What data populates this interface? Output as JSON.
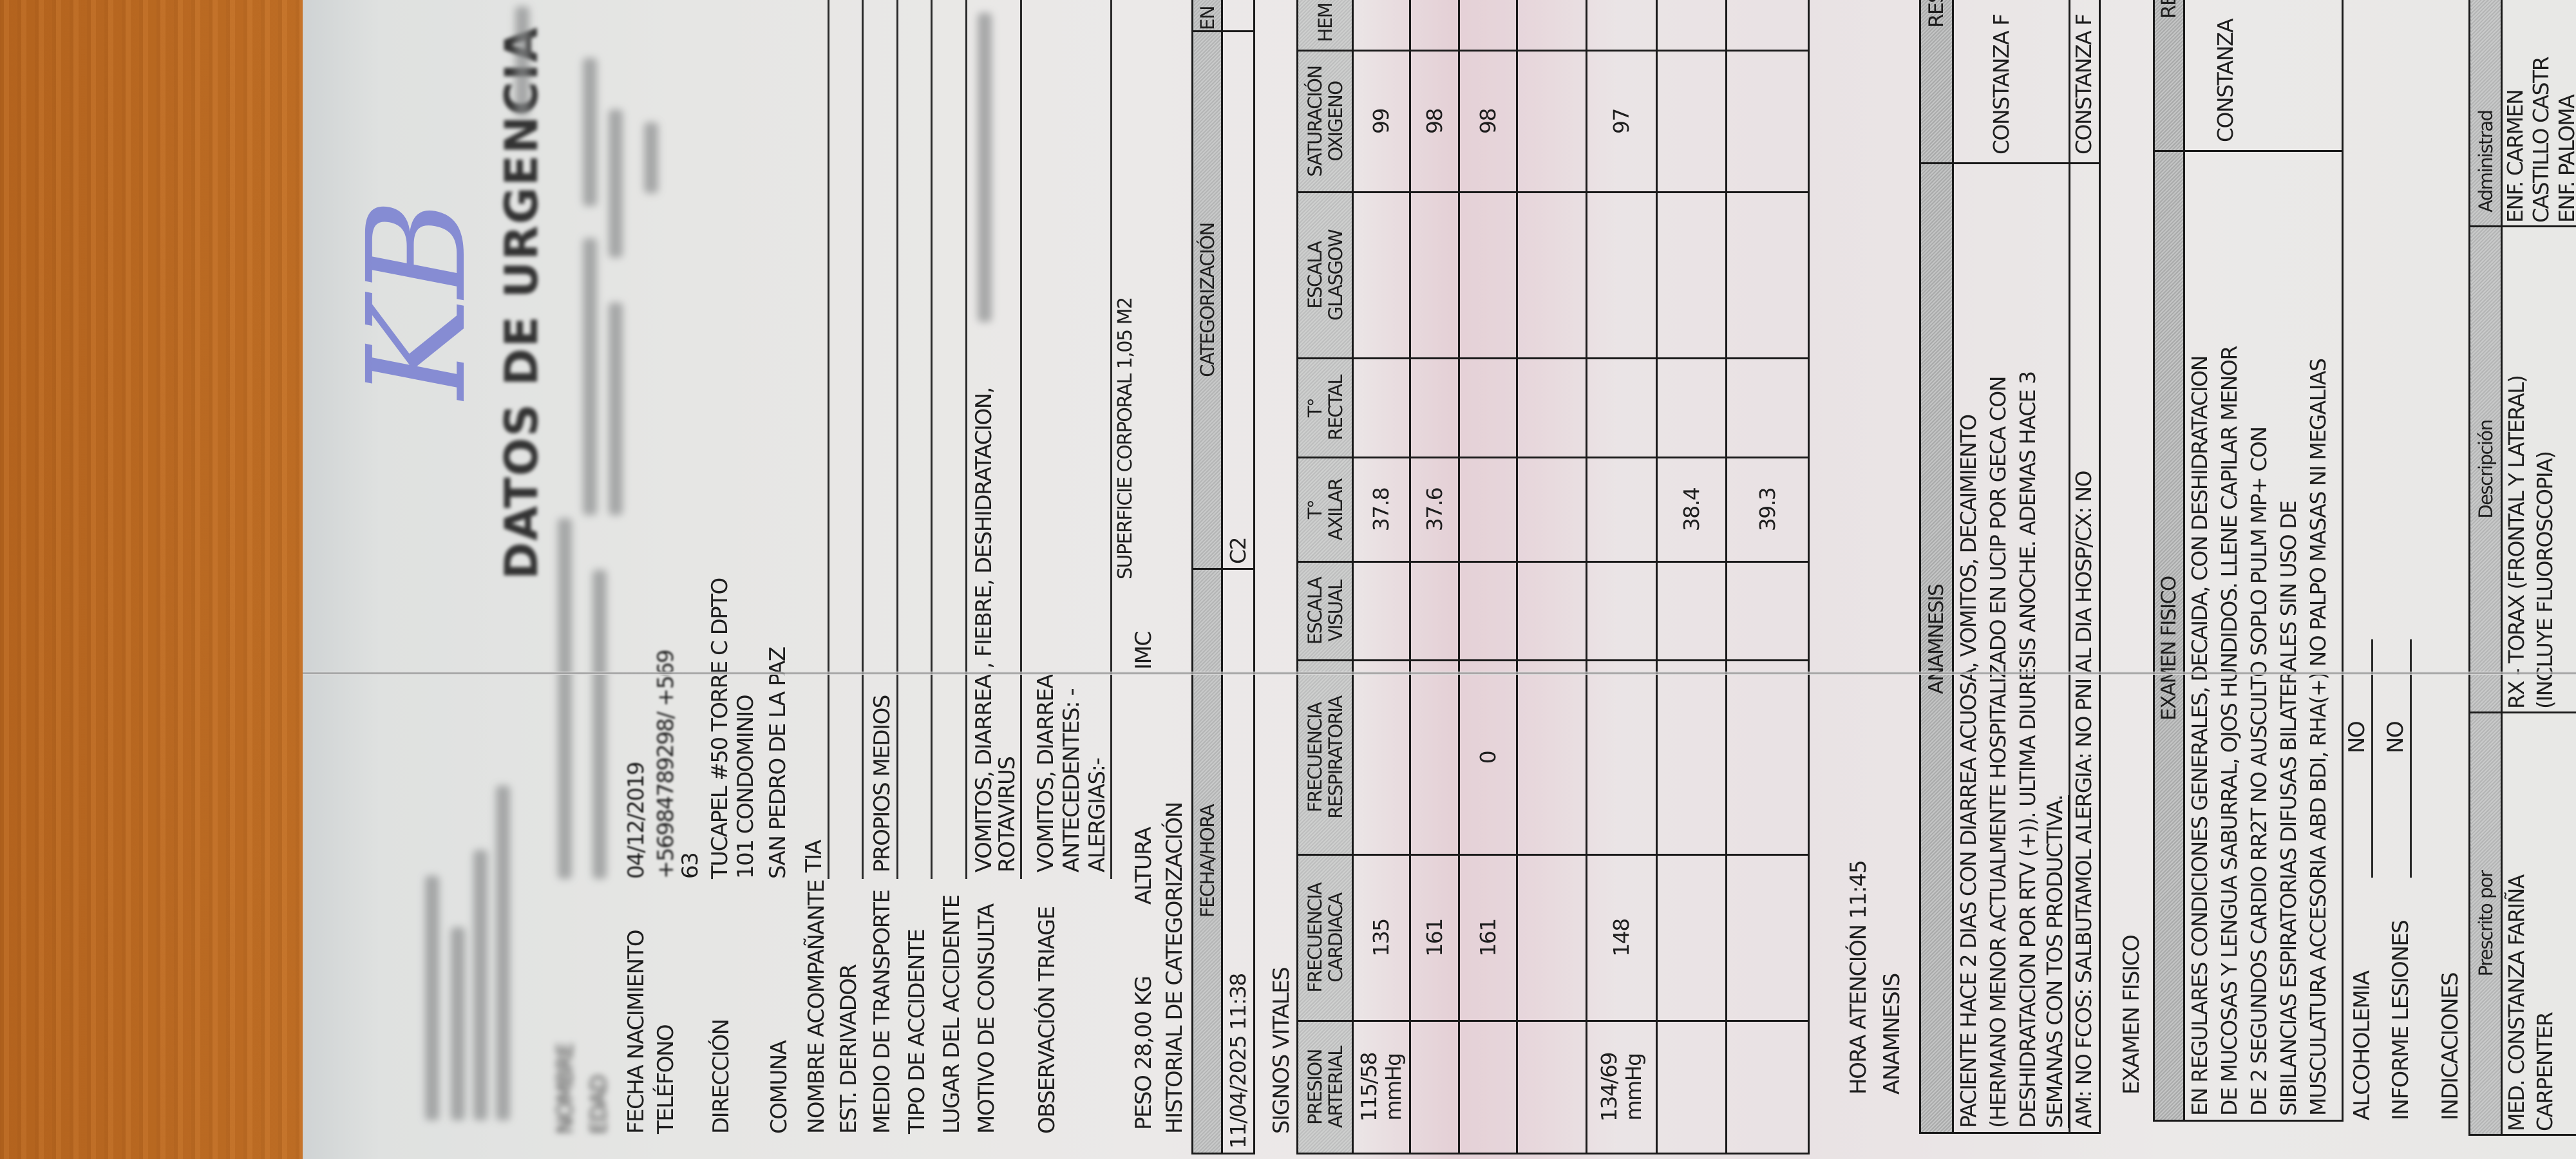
{
  "header": {
    "title": "DATOS DE URGENCIA",
    "handwritten_mark": "KB",
    "handwritten_color": "#6870cf"
  },
  "patient": {
    "fecha_nacimiento": {
      "label": "FECHA NACIMIENTO",
      "value": "04/12/2019"
    },
    "nombre_label": "NOMBRE",
    "edad_label": "EDAD",
    "telefono": {
      "label": "TELÉFONO",
      "value_line1": "+56984789298/ +569",
      "value_line2": "63"
    },
    "direccion": {
      "label": "DIRECCIÓN",
      "value_line1": "TUCAPEL #50 TORRE C DPTO",
      "value_line2": "101 CONDOMINIO"
    },
    "comuna": {
      "label": "COMUNA",
      "value": "SAN PEDRO DE LA PAZ"
    },
    "acompanante": {
      "label": "NOMBRE ACOMPAÑANTE",
      "value": "TIA"
    },
    "derivador": {
      "label": "EST. DERIVADOR",
      "value": ""
    },
    "transporte": {
      "label": "MEDIO DE TRANSPORTE",
      "value": "PROPIOS MEDIOS"
    },
    "tipo_accidente": {
      "label": "TIPO DE ACCIDENTE",
      "value": ""
    },
    "lugar_accidente": {
      "label": "LUGAR DEL ACCIDENTE",
      "value": ""
    },
    "motivo": {
      "label": "MOTIVO DE CONSULTA",
      "value_line1": "VOMITOS, DIARREA , FIEBRE, DESHIDRATACION,",
      "value_line2": "ROTAVIRUS"
    },
    "observacion": {
      "label": "OBSERVACIÓN TRIAGE",
      "value_line1": "VOMITOS, DIARREA",
      "value_line2": "ANTECEDENTES: -",
      "value_line3": "ALERGIAS:-"
    },
    "peso": "PESO 28,00 KG",
    "altura": "ALTURA",
    "imc": "IMC",
    "superficie": "SUPERFICIE CORPORAL 1,05 M2"
  },
  "categorizacion": {
    "section_label": "HISTORIAL DE CATEGORIZACIÓN",
    "col_fecha": "FECHA/HORA",
    "col_categoria": "CATEGORIZACIÓN",
    "col_extra": "EN",
    "fecha": "11/04/2025 11:38",
    "categoria": "C2"
  },
  "vitals": {
    "section_label": "SIGNOS VITALES",
    "headers": [
      [
        "PRESION",
        "ARTERIAL"
      ],
      [
        "FRECUENCIA",
        "CARDIACA"
      ],
      [
        "FRECUENCIA",
        "RESPIRATORIA"
      ],
      [
        "ESCALA",
        "VISUAL"
      ],
      [
        "T°",
        "AXILAR"
      ],
      [
        "T°",
        "RECTAL"
      ],
      [
        "ESCALA",
        "GLASGOW"
      ],
      [
        "SATURACIÓN",
        "OXIGENO"
      ],
      [
        "HEM",
        ""
      ]
    ],
    "rows": [
      [
        "115/58\nmmHg",
        "135",
        "",
        "",
        "37.8",
        "",
        "",
        "99",
        ""
      ],
      [
        "",
        "161",
        "",
        "",
        "37.6",
        "",
        "",
        "98",
        ""
      ],
      [
        "",
        "161",
        "0",
        "",
        "",
        "",
        "",
        "98",
        ""
      ],
      [
        "",
        "",
        "",
        "",
        "",
        "",
        "",
        "",
        ""
      ],
      [
        "134/69\nmmHg",
        "148",
        "",
        "",
        "",
        "",
        "",
        "97",
        ""
      ],
      [
        "",
        "",
        "",
        "",
        "38.4",
        "",
        "",
        "",
        ""
      ],
      [
        "",
        "",
        "",
        "",
        "39.3",
        "",
        "",
        "",
        ""
      ]
    ]
  },
  "anamnesis": {
    "hora_atencion": "HORA ATENCIÓN 11:45",
    "section_label": "ANAMNESIS",
    "header": "ANAMNESIS",
    "resp_header": "RES",
    "lines": [
      "PACIENTE HACE 2 DIAS CON DIARREA ACUOSA, VOMITOS, DECAIMIENTO",
      "(HERMANO MENOR ACTUALMENTE HOSPITALIZADO EN UCIP POR GECA CON",
      "DESHIDRATACION POR RTV (+)). ULTIMA DIURESIS ANOCHE. ADEMAS HACE 3",
      "SEMANAS CON TOS PRODUCTIVA."
    ],
    "responsable": "CONSTANZA F",
    "am_line": "AM: NO FCOS: SALBUTAMOL ALERGIA: NO PNI AL DIA HOSP/CX: NO",
    "am_responsable": "CONSTANZA F"
  },
  "examen": {
    "section_label": "EXAMEN FISICO",
    "header": "EXAMEN FISICO",
    "resp_header": "RE",
    "lines": [
      "EN REGULARES CONDICIONES GENERALES, DECAIDA, CON DESHIDRATACION",
      "DE MUCOSAS Y LENGUA SABURRAL, OJOS HUNDIDOS. LLENE CAPILAR MENOR",
      "DE 2 SEGUNDOS CARDIO RR2T NO AUSCULTO SOPLO PULM MP+ CON",
      "SIBILANCIAS ESPIRATORIAS DIFUSAS BILATERALES SIN USO DE",
      "MUSCULATURA ACCESORIA ABD BDI, RHA(+) NO PALPO MASAS NI MEGALIAS"
    ],
    "responsable": "CONSTANZA"
  },
  "alcoholemia": {
    "label": "ALCOHOLEMIA",
    "value": "NO"
  },
  "informe_lesiones": {
    "label": "INFORME LESIONES",
    "value": "NO"
  },
  "indicaciones": {
    "section_label": "INDICACIONES",
    "col_prescrito": "Prescrito por",
    "col_descripcion": "Descripción",
    "col_administrado": "Administrad",
    "row": {
      "prescrito_line1": "MED.   CONSTANZA   FARIÑA",
      "prescrito_line2": "CARPENTER",
      "descripcion_line1": "RX  -  TORAX  (FRONTAL  Y  LATERAL)",
      "descripcion_line2": "(INCLUYE FLUOROSCOPIA)",
      "administrado_line1": "ENF.   CARMEN",
      "administrado_line2": "CASTILLO CASTR",
      "administrado_line3": "ENF.   PALOMA"
    }
  }
}
